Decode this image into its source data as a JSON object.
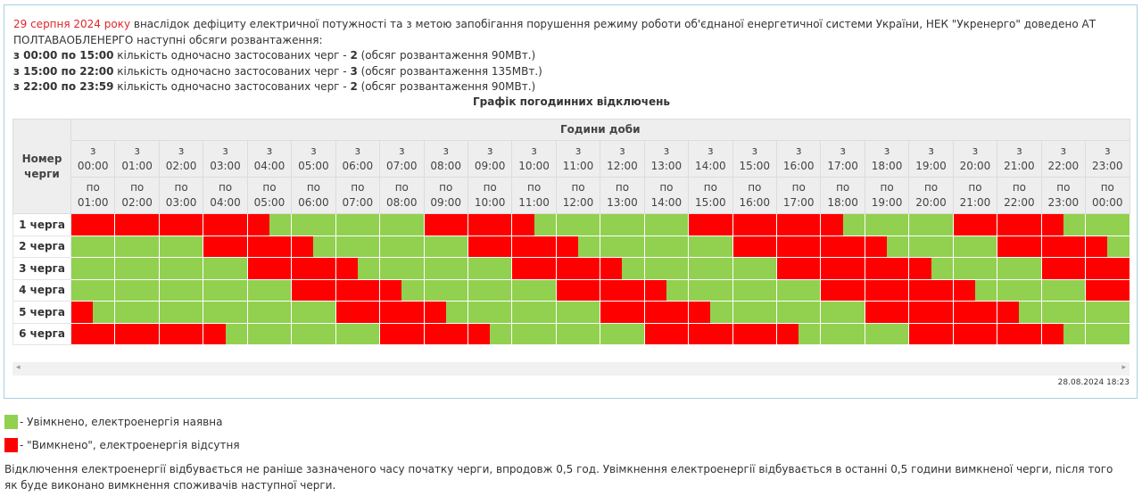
{
  "intro": {
    "date": "29 серпня 2024 року",
    "text": " внаслідок дефіциту електричної потужності та з метою запобігання порушення режиму роботи об'єднаної енергетичної системи України, НЕК \"Укренерго\" доведено АТ ПОЛТАВАОБЛЕНЕРГО наступні обсяги розвантаження:",
    "periods": [
      {
        "range": "з 00:00 по 15:00",
        "text": " кількість одночасно застосованих черг - ",
        "count": "2",
        "volume": " (обсяг розвантаження 90МВт.)"
      },
      {
        "range": "з 15:00 по 22:00",
        "text": " кількість одночасно застосованих черг - ",
        "count": "3",
        "volume": " (обсяг розвантаження 135МВт.)"
      },
      {
        "range": "з 22:00 по 23:59",
        "text": " кількість одночасно застосованих черг - ",
        "count": "2",
        "volume": " (обсяг розвантаження 90МВт.)"
      }
    ]
  },
  "table": {
    "caption": "Графік погодинних відключень",
    "queue_header": "Номер черги",
    "hours_header": "Години доби",
    "from_word": "з",
    "to_word": "по",
    "hours": [
      "00:00",
      "01:00",
      "02:00",
      "03:00",
      "04:00",
      "05:00",
      "06:00",
      "07:00",
      "08:00",
      "09:00",
      "10:00",
      "11:00",
      "12:00",
      "13:00",
      "14:00",
      "15:00",
      "16:00",
      "17:00",
      "18:00",
      "19:00",
      "20:00",
      "21:00",
      "22:00",
      "23:00"
    ],
    "hours_to": [
      "01:00",
      "02:00",
      "03:00",
      "04:00",
      "05:00",
      "06:00",
      "07:00",
      "08:00",
      "09:00",
      "10:00",
      "11:00",
      "12:00",
      "13:00",
      "14:00",
      "15:00",
      "16:00",
      "17:00",
      "18:00",
      "19:00",
      "20:00",
      "21:00",
      "22:00",
      "23:00",
      "00:00"
    ],
    "rows": [
      {
        "label": "1 черга",
        "off": [
          [
            "00:00",
            "04:30"
          ],
          [
            "08:00",
            "10:30"
          ],
          [
            "14:00",
            "17:30"
          ],
          [
            "20:00",
            "22:30"
          ]
        ]
      },
      {
        "label": "2 черга",
        "off": [
          [
            "03:00",
            "05:30"
          ],
          [
            "09:00",
            "11:30"
          ],
          [
            "15:00",
            "18:30"
          ],
          [
            "21:00",
            "23:30"
          ]
        ]
      },
      {
        "label": "3 черга",
        "off": [
          [
            "04:00",
            "06:30"
          ],
          [
            "10:00",
            "12:30"
          ],
          [
            "16:00",
            "19:30"
          ],
          [
            "22:00",
            "24:00"
          ]
        ]
      },
      {
        "label": "4 черга",
        "off": [
          [
            "05:00",
            "07:30"
          ],
          [
            "11:00",
            "13:30"
          ],
          [
            "17:00",
            "20:30"
          ],
          [
            "23:00",
            "24:00"
          ]
        ]
      },
      {
        "label": "5 черга",
        "off": [
          [
            "00:00",
            "00:30"
          ],
          [
            "06:00",
            "08:30"
          ],
          [
            "12:00",
            "14:30"
          ],
          [
            "18:00",
            "21:30"
          ]
        ]
      },
      {
        "label": "6 черга",
        "off": [
          [
            "00:00",
            "03:30"
          ],
          [
            "07:00",
            "09:30"
          ],
          [
            "13:00",
            "16:30"
          ],
          [
            "19:00",
            "22:30"
          ]
        ]
      }
    ]
  },
  "colors": {
    "on": "#92d050",
    "off": "#ff0000",
    "date": "#e0262b"
  },
  "timestamp": "28.08.2024 18:23",
  "legend": {
    "on": "- Увімкнено, електроенергія наявна",
    "off": "- \"Вимкнено\", електроенергія відсутня"
  },
  "note": "Відключення електроенергії відбувається не раніше зазначеного часу початку черги, впродовж 0,5 год. Увімкнення електроенергії відбувається в останні 0,5 години вимкненої черги, після того як буде виконано вимкнення споживачів наступної черги.",
  "scroll": {
    "left_icon": "arrow-left",
    "right_icon": "arrow-right"
  }
}
